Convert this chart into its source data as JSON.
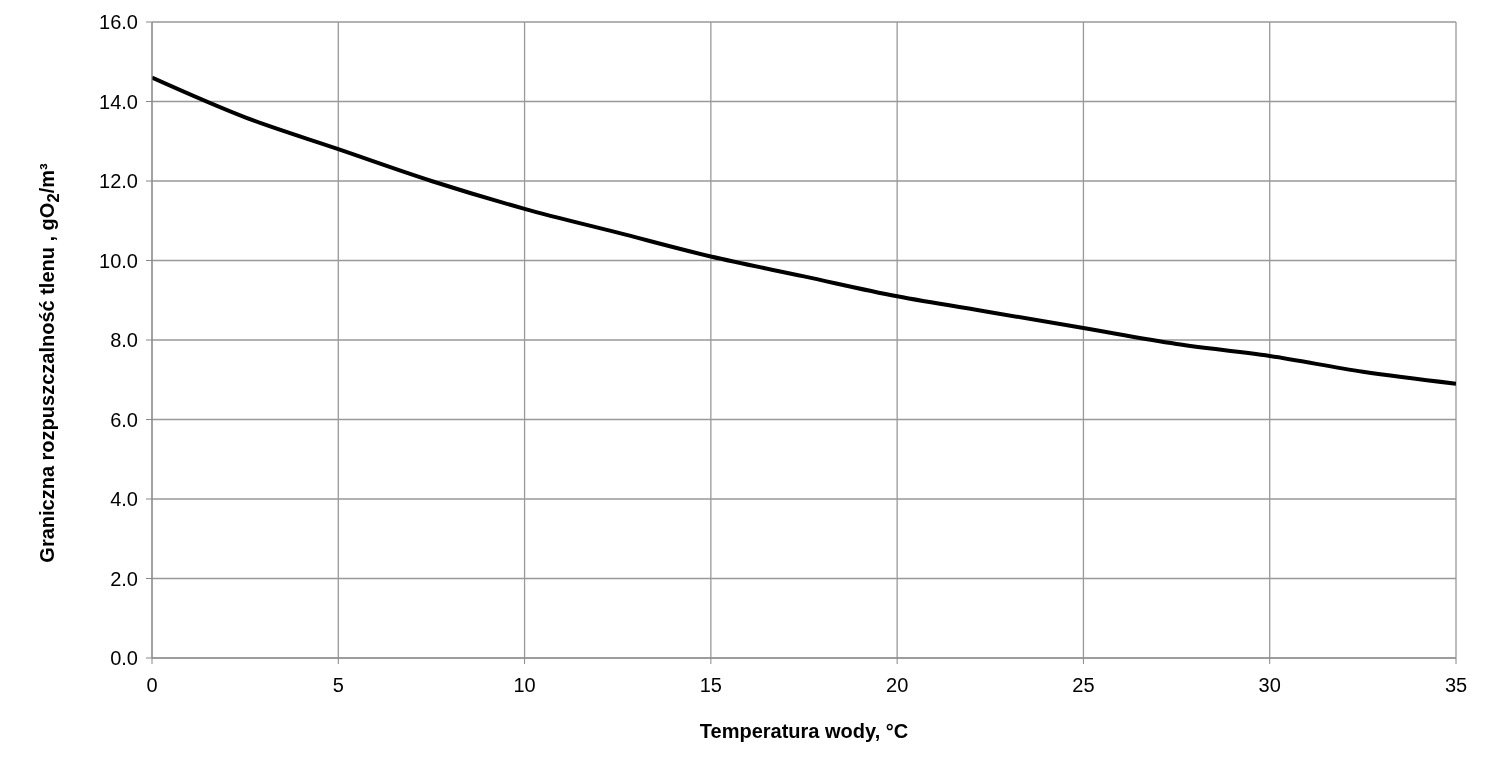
{
  "chart_data": {
    "type": "line",
    "xlabel": "Temperatura wody, °C",
    "ylabel": "Graniczna rozpuszczalność tlenu , gO$_{2}$/m³",
    "x": [
      0,
      2.5,
      5,
      7.5,
      10,
      12.5,
      15,
      17.5,
      20,
      22.5,
      25,
      27.5,
      30,
      32.5,
      35
    ],
    "series": [
      {
        "color": "#000000",
        "values": [
          14.6,
          13.6,
          12.8,
          12.0,
          11.3,
          10.7,
          10.1,
          9.6,
          9.1,
          8.7,
          8.3,
          7.9,
          7.6,
          7.2,
          6.9
        ]
      }
    ],
    "xlim": [
      0,
      35
    ],
    "xticks": [
      0,
      5,
      10,
      15,
      20,
      25,
      30,
      35
    ],
    "ylim": [
      0,
      16
    ],
    "yticks": [
      {
        "value": 0,
        "label": "0.0"
      },
      {
        "value": 2,
        "label": "2.0"
      },
      {
        "value": 4,
        "label": "4.0"
      },
      {
        "value": 6,
        "label": "6.0"
      },
      {
        "value": 8,
        "label": "8.0"
      },
      {
        "value": 10,
        "label": "10.0"
      },
      {
        "value": 12,
        "label": "12.0"
      },
      {
        "value": 14,
        "label": "14.0"
      },
      {
        "value": 16,
        "label": "16.0"
      }
    ],
    "grid": true,
    "marker": "none",
    "line_style": "solid"
  }
}
